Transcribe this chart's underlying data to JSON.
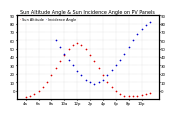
{
  "title": "Sun Altitude Angle & Sun Incidence Angle on PV Panels",
  "ylim": [
    -10,
    90
  ],
  "xlim": [
    0,
    33
  ],
  "background_color": "#ffffff",
  "grid_color": "#b0b0b0",
  "red_series": {
    "label": "Sun Altitude",
    "color": "#dd0000",
    "x": [
      2,
      3,
      4,
      5,
      6,
      7,
      8,
      9,
      10,
      11,
      12,
      13,
      14,
      15,
      16,
      17,
      18,
      19,
      20,
      21,
      22,
      23,
      24,
      25,
      26,
      27,
      28,
      29,
      30,
      31
    ],
    "y": [
      -8,
      -6,
      -4,
      -1,
      4,
      10,
      18,
      27,
      35,
      43,
      50,
      55,
      57,
      55,
      50,
      43,
      35,
      27,
      18,
      10,
      4,
      -1,
      -4,
      -6,
      -7,
      -7,
      -6,
      -5,
      -4,
      -3
    ]
  },
  "blue_series": {
    "label": "Incidence Angle",
    "color": "#0000cc",
    "x": [
      9,
      10,
      11,
      12,
      13,
      14,
      15,
      16,
      17,
      18,
      19,
      20,
      21,
      22,
      23,
      24,
      25,
      26,
      27,
      28,
      29,
      30,
      31
    ],
    "y": [
      60,
      52,
      44,
      37,
      30,
      23,
      18,
      13,
      10,
      8,
      10,
      13,
      18,
      24,
      30,
      37,
      44,
      52,
      60,
      67,
      73,
      78,
      82
    ]
  },
  "x_tick_labels": [
    "4a",
    "6a",
    "8a",
    "10a",
    "12p",
    "2p",
    "4p",
    "6p",
    "8p",
    "10p"
  ],
  "x_tick_positions": [
    2,
    5,
    8,
    11,
    14,
    17,
    20,
    23,
    26,
    29
  ],
  "y_ticks": [
    0,
    10,
    20,
    30,
    40,
    50,
    60,
    70,
    80,
    90
  ],
  "title_fontsize": 3.5,
  "tick_fontsize": 2.8,
  "legend_fontsize": 2.5,
  "marker_size": 1.5
}
